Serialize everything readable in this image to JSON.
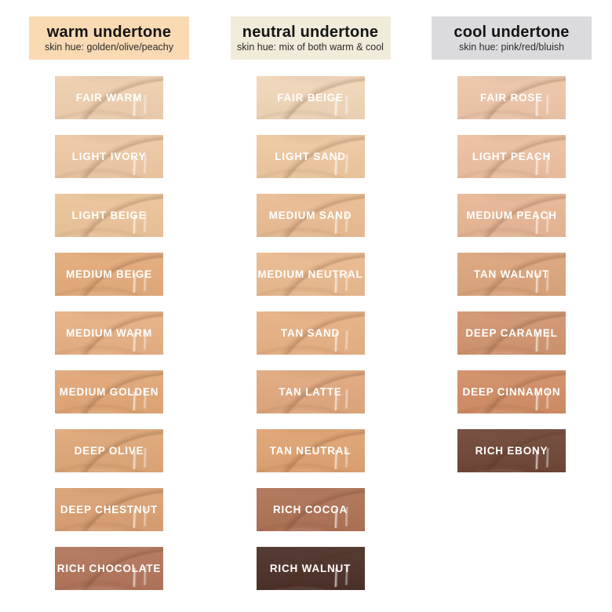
{
  "theme": {
    "page_bg": "#FFFFFF",
    "swatch_label_color": "#FFFFFF"
  },
  "columns": [
    {
      "id": "warm",
      "header": {
        "title": "warm undertone",
        "subtitle": "skin hue: golden/olive/peachy",
        "bg": "#F9DAB3"
      },
      "swatches": [
        {
          "label": "FAIR WARM",
          "color": "#EFD0AF"
        },
        {
          "label": "LIGHT IVORY",
          "color": "#EEC8A3"
        },
        {
          "label": "LIGHT BEIGE",
          "color": "#ECC49A"
        },
        {
          "label": "MEDIUM BEIGE",
          "color": "#E3AB7B"
        },
        {
          "label": "MEDIUM WARM",
          "color": "#E7B084"
        },
        {
          "label": "MEDIUM GOLDEN",
          "color": "#E1A778"
        },
        {
          "label": "DEEP OLIVE",
          "color": "#DEA778"
        },
        {
          "label": "DEEP CHESTNUT",
          "color": "#DAA073"
        },
        {
          "label": "RICH CHOCOLATE",
          "color": "#B2765B"
        }
      ]
    },
    {
      "id": "neutral",
      "header": {
        "title": "neutral undertone",
        "subtitle": "skin hue: mix of both warm & cool",
        "bg": "#F1EBDA"
      },
      "swatches": [
        {
          "label": "FAIR BEIGE",
          "color": "#F1D6B8"
        },
        {
          "label": "LIGHT SAND",
          "color": "#EEC8A1"
        },
        {
          "label": "MEDIUM SAND",
          "color": "#EABD93"
        },
        {
          "label": "MEDIUM NEUTRAL",
          "color": "#EABA8F"
        },
        {
          "label": "TAN SAND",
          "color": "#E7B184"
        },
        {
          "label": "TAN LATTE",
          "color": "#E1A87E"
        },
        {
          "label": "TAN NEUTRAL",
          "color": "#DFA372"
        },
        {
          "label": "RICH COCOA",
          "color": "#AF7356"
        },
        {
          "label": "RICH WALNUT",
          "color": "#4C3128"
        }
      ]
    },
    {
      "id": "cool",
      "header": {
        "title": "cool undertone",
        "subtitle": "skin hue: pink/red/bluish",
        "bg": "#DBDBDD"
      },
      "swatches": [
        {
          "label": "FAIR ROSE",
          "color": "#EEC6A9"
        },
        {
          "label": "LIGHT PEACH",
          "color": "#EDC0A1"
        },
        {
          "label": "MEDIUM PEACH",
          "color": "#E8B795"
        },
        {
          "label": "TAN WALNUT",
          "color": "#DCA57D"
        },
        {
          "label": "DEEP CARAMEL",
          "color": "#D19570"
        },
        {
          "label": "DEEP CINNAMON",
          "color": "#D18E66"
        },
        {
          "label": "RICH EBONY",
          "color": "#6F4737"
        }
      ]
    }
  ]
}
